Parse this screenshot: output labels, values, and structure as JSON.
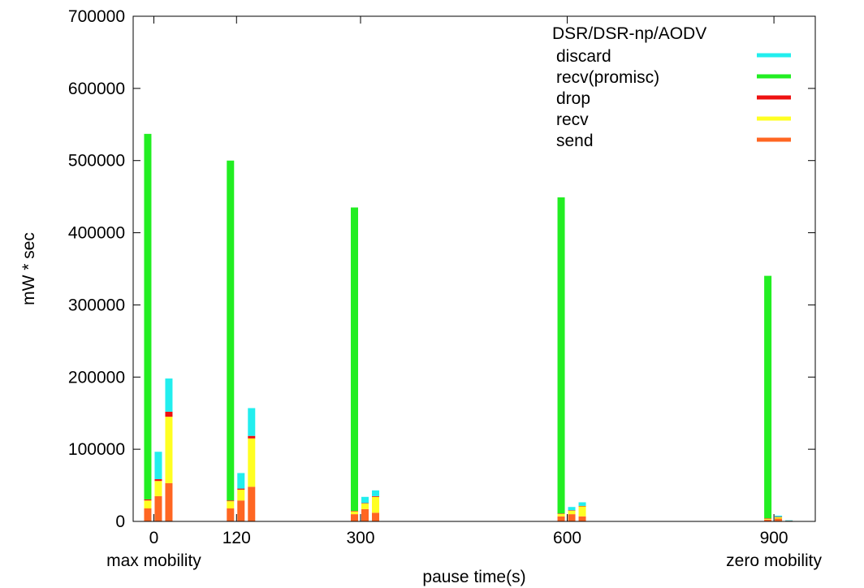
{
  "chart_data": {
    "type": "bar",
    "stacked": true,
    "title": "",
    "xlabel": "pause time(s)",
    "ylabel": "mW * sec",
    "ylim": [
      0,
      700000
    ],
    "xlim": [
      -30,
      960
    ],
    "yticks": [
      0,
      100000,
      200000,
      300000,
      400000,
      500000,
      600000,
      700000
    ],
    "ytick_labels": [
      "0",
      "100000",
      "200000",
      "300000",
      "400000",
      "500000",
      "600000",
      "700000"
    ],
    "xticks": [
      0,
      120,
      300,
      600,
      900
    ],
    "xtick_labels": [
      "0",
      "120",
      "300",
      "600",
      "900"
    ],
    "x_sublabels": [
      {
        "x": 0,
        "text": "max mobility"
      },
      {
        "x": 900,
        "text": "zero mobility"
      }
    ],
    "legend_title": "DSR/DSR-np/AODV",
    "legend_position": "top-right",
    "grid": false,
    "series": [
      {
        "name": "discard",
        "color": "#22eeee"
      },
      {
        "name": "recv(promisc)",
        "color": "#22ee22"
      },
      {
        "name": "drop",
        "color": "#ee1111"
      },
      {
        "name": "recv",
        "color": "#ffff22"
      },
      {
        "name": "send",
        "color": "#ff6622"
      }
    ],
    "stack_order": [
      "send",
      "recv",
      "drop",
      "recv(promisc)",
      "discard"
    ],
    "protocols": [
      "DSR",
      "DSR-np",
      "AODV"
    ],
    "groups": [
      {
        "pause": 0,
        "bars": [
          {
            "protocol": "DSR",
            "send": 18000,
            "recv": 11000,
            "drop": 1500,
            "recv(promisc)": 506500,
            "discard": 0
          },
          {
            "protocol": "DSR-np",
            "send": 35000,
            "recv": 21000,
            "drop": 2500,
            "recv(promisc)": 0,
            "discard": 38000
          },
          {
            "protocol": "AODV",
            "send": 53000,
            "recv": 92000,
            "drop": 7000,
            "recv(promisc)": 0,
            "discard": 46000
          }
        ]
      },
      {
        "pause": 120,
        "bars": [
          {
            "protocol": "DSR",
            "send": 18000,
            "recv": 10000,
            "drop": 1000,
            "recv(promisc)": 471000,
            "discard": 0
          },
          {
            "protocol": "DSR-np",
            "send": 29000,
            "recv": 15000,
            "drop": 1500,
            "recv(promisc)": 0,
            "discard": 21500
          },
          {
            "protocol": "AODV",
            "send": 48000,
            "recv": 67000,
            "drop": 3500,
            "recv(promisc)": 0,
            "discard": 38500
          }
        ]
      },
      {
        "pause": 300,
        "bars": [
          {
            "protocol": "DSR",
            "send": 10000,
            "recv": 4000,
            "drop": 500,
            "recv(promisc)": 420500,
            "discard": 0
          },
          {
            "protocol": "DSR-np",
            "send": 17000,
            "recv": 8000,
            "drop": 500,
            "recv(promisc)": 0,
            "discard": 8500
          },
          {
            "protocol": "AODV",
            "send": 12000,
            "recv": 22000,
            "drop": 1000,
            "recv(promisc)": 0,
            "discard": 8000
          }
        ]
      },
      {
        "pause": 600,
        "bars": [
          {
            "protocol": "DSR",
            "send": 7000,
            "recv": 3500,
            "drop": 500,
            "recv(promisc)": 438000,
            "discard": 0
          },
          {
            "protocol": "DSR-np",
            "send": 10000,
            "recv": 5000,
            "drop": 500,
            "recv(promisc)": 0,
            "discard": 4500
          },
          {
            "protocol": "AODV",
            "send": 7000,
            "recv": 14000,
            "drop": 500,
            "recv(promisc)": 0,
            "discard": 5000
          }
        ]
      },
      {
        "pause": 900,
        "bars": [
          {
            "protocol": "DSR",
            "send": 2500,
            "recv": 1500,
            "drop": 300,
            "recv(promisc)": 336000,
            "discard": 0
          },
          {
            "protocol": "DSR-np",
            "send": 4000,
            "recv": 2000,
            "drop": 300,
            "recv(promisc)": 0,
            "discard": 1700
          },
          {
            "protocol": "AODV",
            "send": 500,
            "recv": 500,
            "drop": 100,
            "recv(promisc)": 0,
            "discard": 400
          }
        ]
      }
    ]
  }
}
